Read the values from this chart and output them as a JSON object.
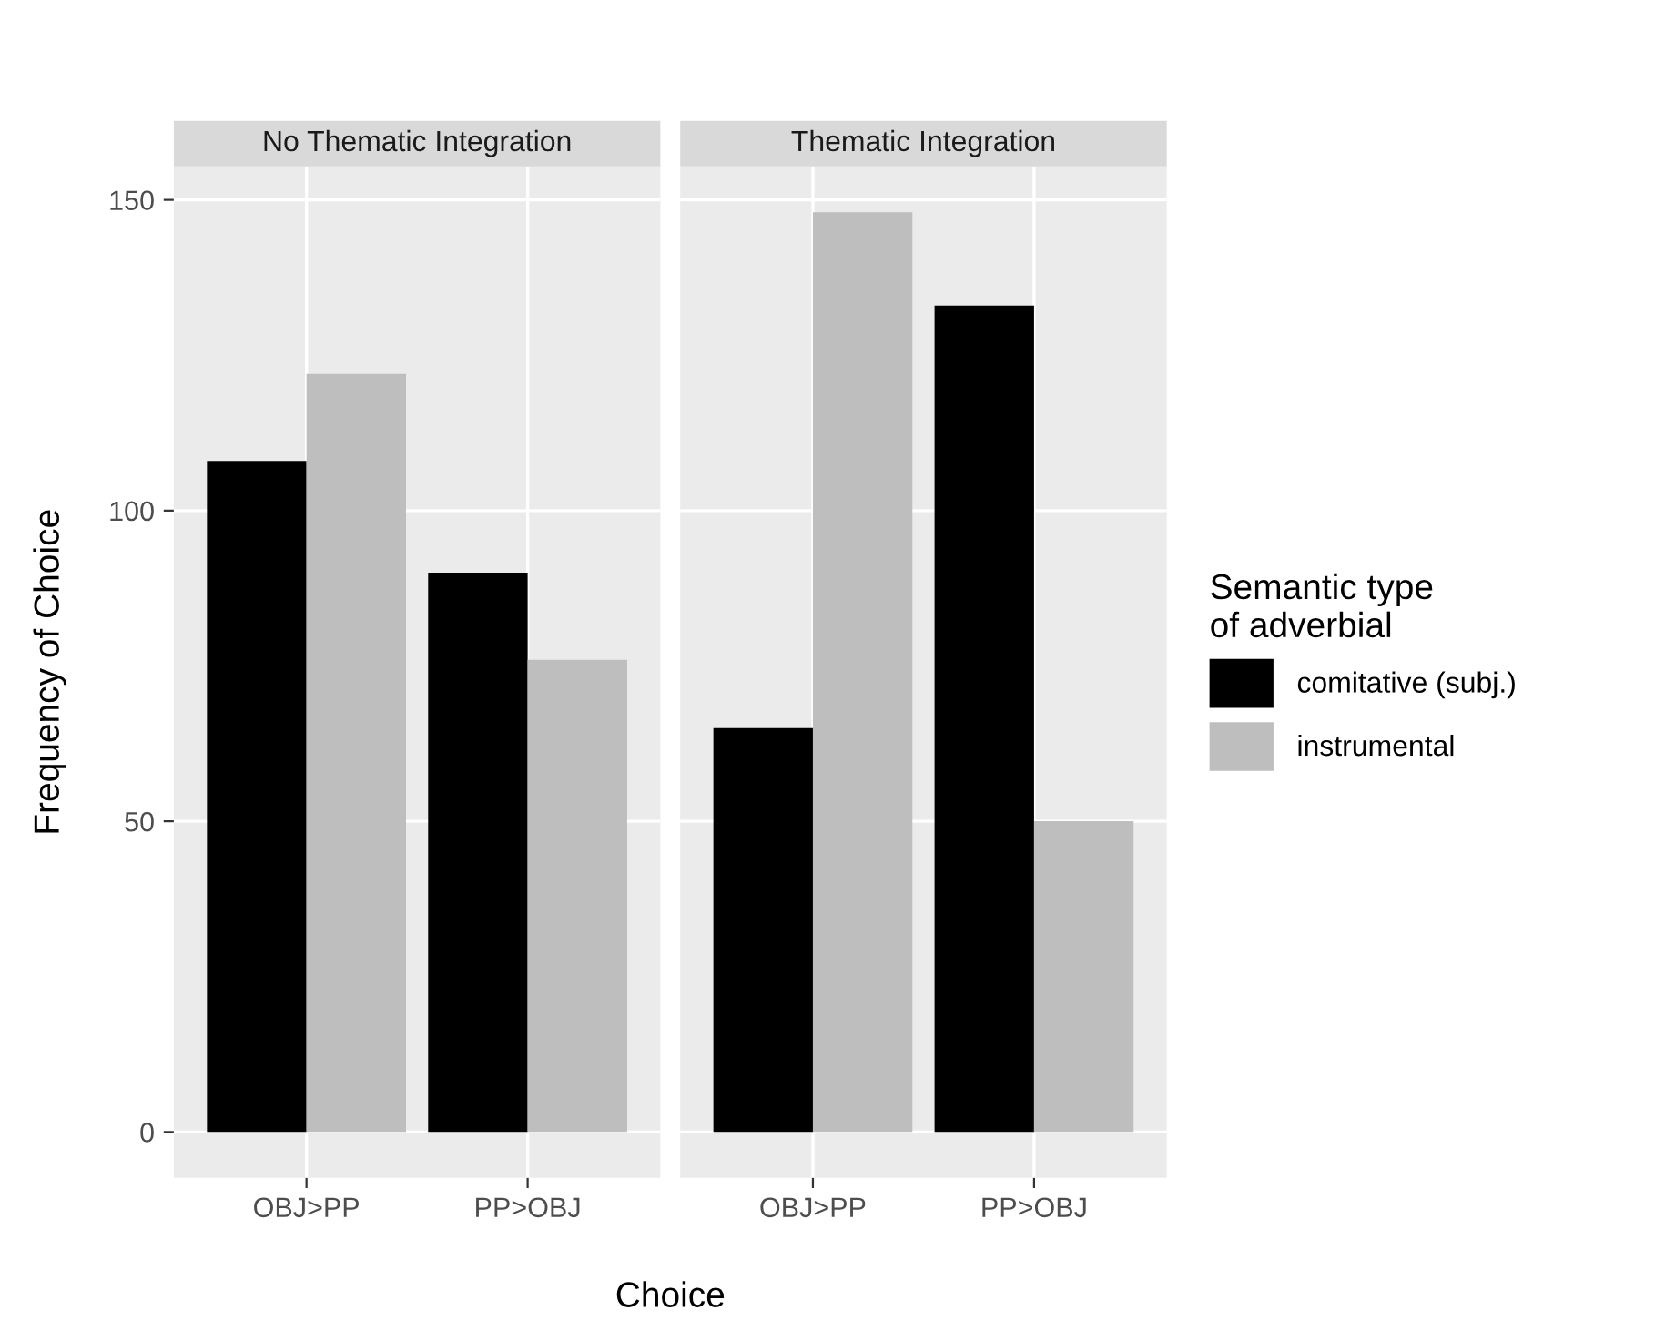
{
  "chart_data": [
    {
      "type": "bar",
      "title": "No Thematic Integration",
      "xlabel": "Choice",
      "ylabel": "Frequency of Choice",
      "categories": [
        "OBJ>PP",
        "PP>OBJ"
      ],
      "series": [
        {
          "name": "comitative (subj.)",
          "color": "#000000",
          "values": [
            108,
            90
          ]
        },
        {
          "name": "instrumental",
          "color": "#bebebe",
          "values": [
            122,
            76
          ]
        }
      ],
      "ylim": [
        -7.4,
        155.4
      ],
      "yticks": [
        0,
        50,
        100,
        150
      ],
      "grid": true,
      "legend": "right",
      "legend_title": "Semantic type\nof adverbial"
    },
    {
      "type": "bar",
      "title": "Thematic Integration",
      "categories": [
        "OBJ>PP",
        "PP>OBJ"
      ],
      "series": [
        {
          "color": "#000000",
          "values": [
            65,
            133
          ]
        },
        {
          "color": "#bebebe",
          "values": [
            148,
            50
          ]
        }
      ],
      "ylim": [
        -7.4,
        155.4
      ],
      "yticks": [
        0,
        50,
        100,
        150
      ],
      "grid": true,
      "tick_labels": "x"
    }
  ]
}
